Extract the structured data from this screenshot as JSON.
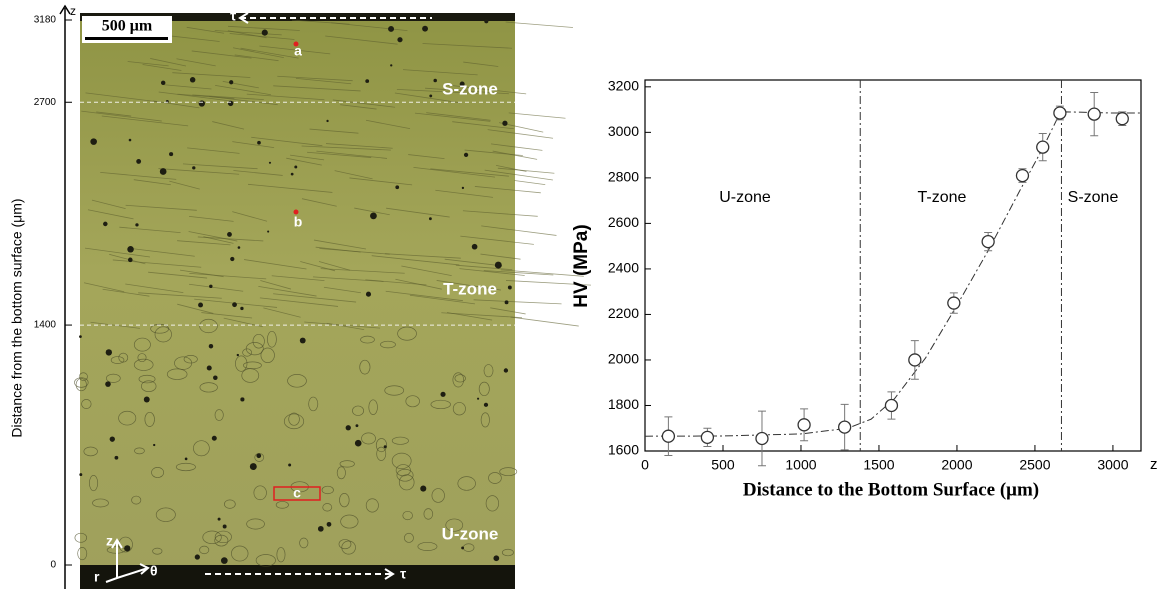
{
  "micrograph": {
    "axis_title": "z",
    "axis_label": "Distance from the bottom surface (μm)",
    "ylim": [
      0,
      3180
    ],
    "yticks": [
      0,
      1400,
      2700,
      3180
    ],
    "scale_bar": "500 μm",
    "markers": [
      "a",
      "b",
      "c"
    ],
    "zones": [
      "S-zone",
      "T-zone",
      "U-zone"
    ],
    "shear_label": "τ",
    "axes_triad": [
      "z",
      "r",
      "θ"
    ]
  },
  "chart_data": {
    "type": "scatter",
    "ylabel": "HV (MPa)",
    "xlabel": "Distance to the Bottom Surface (μm)",
    "x_axis_end_label": "z",
    "xlim": [
      0,
      3180
    ],
    "ylim": [
      1600,
      3230
    ],
    "xticks": [
      0,
      500,
      1000,
      1500,
      2000,
      2500,
      3000
    ],
    "yticks": [
      1600,
      1800,
      2000,
      2200,
      2400,
      2600,
      2800,
      3000,
      3200
    ],
    "series": [
      {
        "x": [
          150,
          400,
          750,
          1020,
          1280,
          1580,
          1730,
          1980,
          2200,
          2420,
          2550,
          2660,
          2880,
          3060
        ],
        "values": [
          1665,
          1660,
          1655,
          1715,
          1705,
          1800,
          2000,
          2250,
          2520,
          2810,
          2935,
          3085,
          3080,
          3060
        ],
        "errors": [
          85,
          40,
          120,
          70,
          100,
          60,
          85,
          45,
          40,
          30,
          60,
          30,
          95,
          30
        ],
        "color": "#333333"
      }
    ],
    "fit": {
      "x": [
        0,
        500,
        1000,
        1300,
        1450,
        1600,
        1800,
        2000,
        2200,
        2400,
        2550,
        2650,
        2700,
        3000,
        3180
      ],
      "values": [
        1665,
        1666,
        1675,
        1700,
        1740,
        1830,
        2010,
        2240,
        2480,
        2740,
        2930,
        3070,
        3090,
        3085,
        3085
      ]
    },
    "zone_boundaries": [
      1380,
      2670
    ],
    "zone_labels": [
      "U-zone",
      "T-zone",
      "S-zone"
    ]
  }
}
